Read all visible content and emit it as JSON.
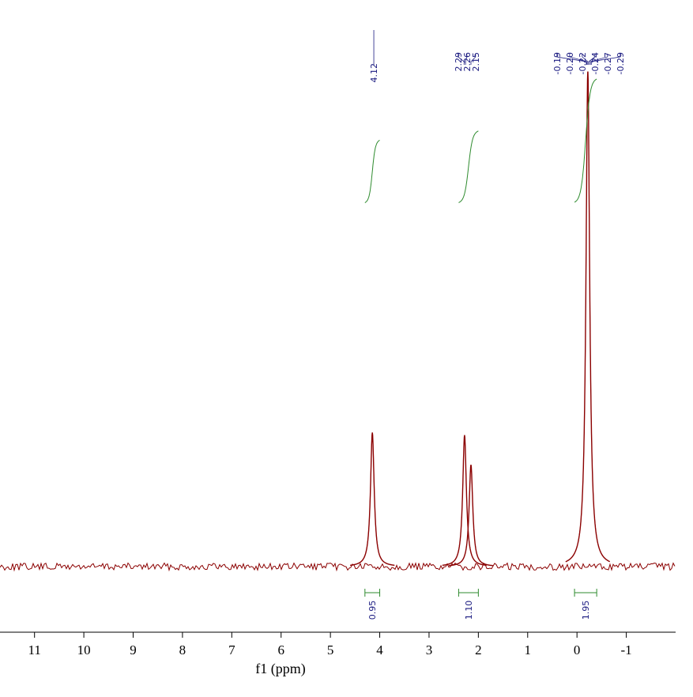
{
  "chart_data": {
    "type": "line",
    "xlabel": "f1 (ppm)",
    "xlim": [
      11.7,
      -2.0
    ],
    "xticks": [
      11,
      10,
      9,
      8,
      7,
      6,
      5,
      4,
      3,
      2,
      1,
      0,
      -1
    ],
    "ylim": [
      0,
      100
    ],
    "color": "#8b0000",
    "x": [
      4.15,
      2.28,
      2.15,
      -0.22
    ],
    "values": [
      27,
      26.5,
      20.5,
      100
    ],
    "peak_labels": [
      {
        "value": 4.12,
        "label": "4.12"
      },
      {
        "value": 2.29,
        "label": "2.29"
      },
      {
        "value": 2.26,
        "label": "2.26"
      },
      {
        "value": 2.15,
        "label": "2.15"
      },
      {
        "value": -0.19,
        "label": "-0.19"
      },
      {
        "value": -0.2,
        "label": "-0.20"
      },
      {
        "value": -0.22,
        "label": "-0.22"
      },
      {
        "value": -0.24,
        "label": "-0.24"
      },
      {
        "value": -0.27,
        "label": "-0.27"
      },
      {
        "value": -0.29,
        "label": "-0.29"
      }
    ],
    "integral_color": "#2e8b2e",
    "integrals": {
      "ranges": [
        [
          4.3,
          4.0
        ],
        [
          2.4,
          2.0
        ],
        [
          0.05,
          -0.4
        ]
      ],
      "values": [
        0.95,
        {
          "value": 1.1,
          "label": "1.10"
        },
        1.95
      ]
    }
  }
}
